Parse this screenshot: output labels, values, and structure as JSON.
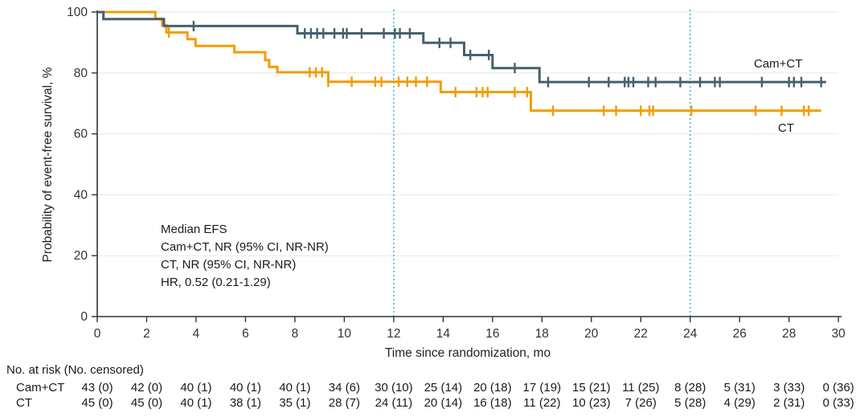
{
  "chart_data": {
    "type": "line",
    "subtype": "kaplan-meier-step",
    "title": "",
    "xlabel": "Time since randomization, mo",
    "ylabel": "Probability of event-free survival, %",
    "xlim": [
      0,
      30
    ],
    "ylim": [
      0,
      100
    ],
    "xticks": [
      0,
      2,
      4,
      6,
      8,
      10,
      12,
      14,
      16,
      18,
      20,
      22,
      24,
      26,
      28,
      30
    ],
    "yticks": [
      0,
      20,
      40,
      60,
      80,
      100
    ],
    "grid": "horizontal",
    "grid_color": "#e8e8e8",
    "axis_color": "#333333",
    "reference_lines_x": [
      12,
      24
    ],
    "reference_line_color": "#41b6e8",
    "series": [
      {
        "name": "Cam+CT",
        "color": "#46606f",
        "steps": [
          [
            0,
            100
          ],
          [
            0.25,
            97.7
          ],
          [
            2.7,
            95.4
          ],
          [
            8.1,
            93.0
          ],
          [
            13.2,
            89.9
          ],
          [
            14.85,
            85.9
          ],
          [
            16.0,
            81.6
          ],
          [
            17.9,
            77.0
          ]
        ],
        "end_x": 29.5,
        "censor_marks": [
          3.9,
          8.4,
          8.65,
          8.9,
          9.15,
          9.6,
          9.95,
          10.1,
          10.7,
          11.6,
          12.05,
          12.25,
          12.65,
          13.85,
          14.3,
          15.1,
          15.85,
          16.9,
          18.25,
          19.9,
          20.7,
          21.35,
          21.5,
          21.7,
          22.3,
          22.6,
          23.6,
          24.4,
          25.0,
          25.2,
          26.9,
          28.0,
          28.2,
          28.5,
          29.3
        ]
      },
      {
        "name": "CT",
        "color": "#f39c00",
        "steps": [
          [
            0,
            100
          ],
          [
            2.35,
            97.8
          ],
          [
            2.63,
            95.6
          ],
          [
            2.8,
            93.3
          ],
          [
            3.65,
            91.1
          ],
          [
            3.98,
            88.9
          ],
          [
            5.55,
            86.8
          ],
          [
            6.8,
            84.2
          ],
          [
            6.96,
            82.0
          ],
          [
            7.29,
            80.2
          ],
          [
            9.35,
            77.1
          ],
          [
            13.9,
            73.7
          ],
          [
            17.55,
            67.6
          ]
        ],
        "end_x": 29.3,
        "censor_marks": [
          2.9,
          8.6,
          8.85,
          9.1,
          9.35,
          10.3,
          11.25,
          11.5,
          12.2,
          12.55,
          12.9,
          13.35,
          14.5,
          15.35,
          15.6,
          15.8,
          16.9,
          17.4,
          18.45,
          20.5,
          21.0,
          22.0,
          22.35,
          22.5,
          24.05,
          26.65,
          27.7,
          28.6,
          28.8
        ]
      }
    ],
    "annotation": {
      "lines": [
        "Median EFS",
        "Cam+CT, NR (95% CI, NR-NR)",
        "CT, NR (95% CI, NR-NR)",
        "HR, 0.52 (0.21-1.29)"
      ]
    }
  },
  "risk_table": {
    "title": "No. at risk (No. censored)",
    "times": [
      0,
      2,
      4,
      6,
      8,
      10,
      12,
      14,
      16,
      18,
      20,
      22,
      24,
      26,
      28,
      30
    ],
    "rows": [
      {
        "label": "Cam+CT",
        "values": [
          "43 (0)",
          "42 (0)",
          "40 (1)",
          "40 (1)",
          "40 (1)",
          "34 (6)",
          "30 (10)",
          "25 (14)",
          "20 (18)",
          "17 (19)",
          "15 (21)",
          "11 (25)",
          "8 (28)",
          "5 (31)",
          "3 (33)",
          "0 (36)"
        ]
      },
      {
        "label": "CT",
        "values": [
          "45 (0)",
          "45 (0)",
          "40 (1)",
          "38 (1)",
          "35 (1)",
          "28 (7)",
          "24 (11)",
          "20 (14)",
          "16 (18)",
          "11 (22)",
          "10 (23)",
          "7 (26)",
          "5 (28)",
          "4 (29)",
          "2 (31)",
          "0 (33)"
        ]
      }
    ]
  }
}
